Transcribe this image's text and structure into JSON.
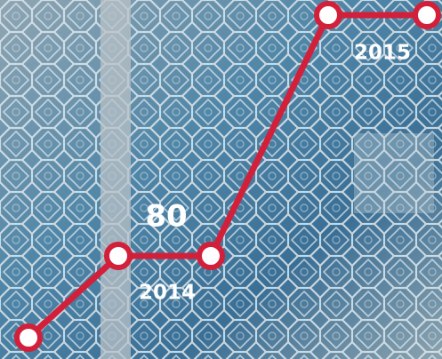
{
  "highlight": {
    "value": 80
  },
  "years": [
    "2014",
    "2015"
  ]
}
